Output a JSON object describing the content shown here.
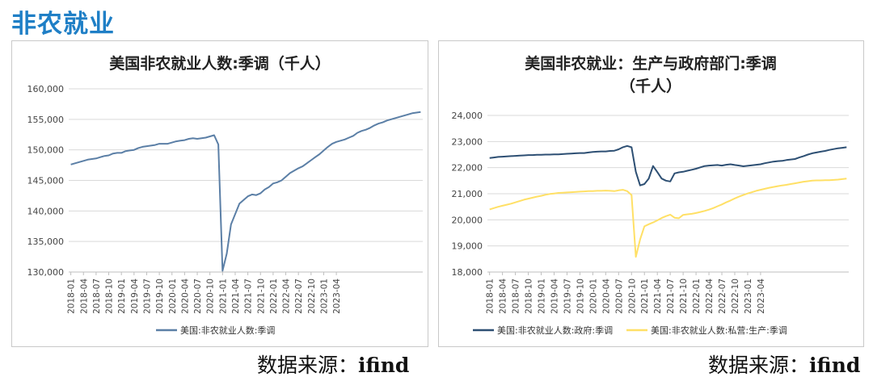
{
  "page": {
    "title": "非农就业",
    "source_label": "数据来源：",
    "source_name": "ifind"
  },
  "colors": {
    "title": "#1f7fc6",
    "total": "#5b7fa6",
    "government": "#2d4f73",
    "private_production": "#ffe066",
    "grid": "#d9d9d9"
  },
  "chart_data": [
    {
      "type": "line",
      "title": "美国非农就业人数:季调（千人）",
      "ylim": [
        130000,
        160000
      ],
      "yticks": [
        "130,000",
        "135,000",
        "140,000",
        "145,000",
        "150,000",
        "155,000",
        "160,000"
      ],
      "ytick_values": [
        130000,
        135000,
        140000,
        145000,
        150000,
        155000,
        160000
      ],
      "xticks": [
        "2018-01",
        "2018-04",
        "2018-07",
        "2018-10",
        "2019-01",
        "2019-04",
        "2019-07",
        "2019-10",
        "2020-01",
        "2020-04",
        "2020-07",
        "2020-10",
        "2021-01",
        "2021-04",
        "2021-07",
        "2021-10",
        "2022-01",
        "2022-04",
        "2022-07",
        "2022-10",
        "2023-01",
        "2023-04"
      ],
      "grid": "horizontal",
      "legend_position": "bottom",
      "series": [
        {
          "name": "美国:非农就业人数:季调",
          "color": "#5b7fa6",
          "values": [
            147600,
            147800,
            148000,
            148200,
            148400,
            148500,
            148600,
            148800,
            149000,
            149100,
            149400,
            149500,
            149500,
            149800,
            149900,
            150000,
            150300,
            150500,
            150600,
            150700,
            150800,
            151000,
            151000,
            151000,
            151200,
            151400,
            151500,
            151600,
            151800,
            151900,
            151800,
            151900,
            152000,
            152200,
            152400,
            150900,
            130200,
            133000,
            137800,
            139500,
            141200,
            141800,
            142400,
            142700,
            142600,
            142900,
            143500,
            143900,
            144500,
            144700,
            145000,
            145600,
            146200,
            146600,
            147000,
            147300,
            147800,
            148300,
            148800,
            149300,
            149900,
            150500,
            151000,
            151300,
            151500,
            151700,
            152000,
            152300,
            152800,
            153100,
            153300,
            153600,
            154000,
            154300,
            154500,
            154800,
            155000,
            155200,
            155400,
            155600,
            155800,
            156000,
            156100,
            156200
          ]
        }
      ]
    },
    {
      "type": "line",
      "title_lines": [
        "美国非农就业：生产与政府部门:季调",
        "（千人）"
      ],
      "ylim": [
        18000,
        24000
      ],
      "yticks": [
        "18,000",
        "19,000",
        "20,000",
        "21,000",
        "22,000",
        "23,000",
        "24,000"
      ],
      "ytick_values": [
        18000,
        19000,
        20000,
        21000,
        22000,
        23000,
        24000
      ],
      "xticks": [
        "2018-01",
        "2018-04",
        "2018-07",
        "2018-10",
        "2019-01",
        "2019-04",
        "2019-07",
        "2019-10",
        "2020-01",
        "2020-04",
        "2020-07",
        "2020-10",
        "2021-01",
        "2021-04",
        "2021-07",
        "2021-10",
        "2022-01",
        "2022-04",
        "2022-07",
        "2022-10",
        "2023-01",
        "2023-04"
      ],
      "grid": "horizontal",
      "legend_position": "bottom",
      "series": [
        {
          "name": "美国:非农就业人数:政府:季调",
          "color": "#2d4f73",
          "values": [
            22370,
            22390,
            22410,
            22420,
            22430,
            22440,
            22450,
            22460,
            22470,
            22480,
            22480,
            22490,
            22490,
            22500,
            22500,
            22510,
            22510,
            22520,
            22530,
            22540,
            22550,
            22560,
            22560,
            22580,
            22600,
            22610,
            22620,
            22620,
            22640,
            22650,
            22700,
            22780,
            22830,
            22780,
            21840,
            21320,
            21370,
            21580,
            22060,
            21830,
            21580,
            21500,
            21470,
            21780,
            21820,
            21840,
            21880,
            21920,
            21960,
            22010,
            22060,
            22080,
            22090,
            22100,
            22080,
            22110,
            22130,
            22100,
            22080,
            22050,
            22070,
            22090,
            22110,
            22130,
            22170,
            22200,
            22230,
            22250,
            22260,
            22290,
            22310,
            22330,
            22390,
            22440,
            22500,
            22550,
            22580,
            22610,
            22640,
            22680,
            22710,
            22740,
            22760,
            22780
          ]
        },
        {
          "name": "美国:非农就业人数:私营:生产:季调",
          "color": "#ffe066",
          "values": [
            20400,
            20450,
            20500,
            20540,
            20580,
            20620,
            20670,
            20720,
            20770,
            20810,
            20850,
            20890,
            20920,
            20960,
            20990,
            21010,
            21030,
            21040,
            21050,
            21060,
            21070,
            21080,
            21090,
            21100,
            21100,
            21110,
            21110,
            21120,
            21110,
            21100,
            21130,
            21150,
            21100,
            20950,
            18580,
            19250,
            19750,
            19830,
            19900,
            19980,
            20070,
            20140,
            20200,
            20080,
            20060,
            20190,
            20210,
            20230,
            20260,
            20300,
            20340,
            20390,
            20450,
            20520,
            20590,
            20670,
            20740,
            20820,
            20890,
            20950,
            21010,
            21060,
            21110,
            21150,
            21190,
            21230,
            21260,
            21290,
            21320,
            21340,
            21370,
            21400,
            21430,
            21460,
            21480,
            21500,
            21510,
            21510,
            21520,
            21520,
            21530,
            21540,
            21560,
            21580
          ]
        }
      ]
    }
  ]
}
